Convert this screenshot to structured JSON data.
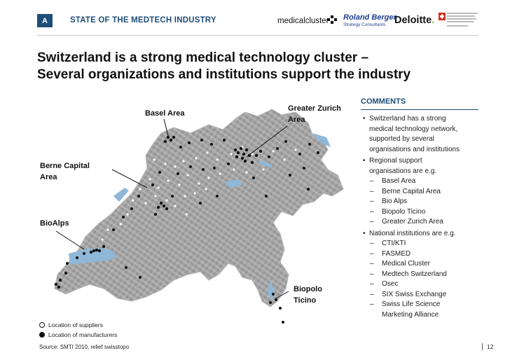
{
  "header": {
    "section_letter": "A",
    "section_title": "STATE OF THE MEDTECH INDUSTRY",
    "logos": {
      "medical_cluster": "medicalcluster",
      "roland_berger": "Roland Berger",
      "roland_berger_sub": "Strategy Consultants",
      "deloitte": "Deloitte",
      "deloitte_dot": "."
    }
  },
  "title_line1": "Switzerland is a strong medical technology cluster –",
  "title_line2": "Several organizations and institutions support the industry",
  "map_labels": {
    "basel": "Basel Area",
    "greater_zurich_1": "Greater Zurich",
    "greater_zurich_2": "Area",
    "berne_1": "Berne Capital",
    "berne_2": "Area",
    "bioalps": "BioAlps",
    "biopolo_1": "Biopolo",
    "biopolo_2": "Ticino"
  },
  "legend": {
    "suppliers": "Location of suppliers",
    "manufacturers": "Location of manufacturers"
  },
  "source": "Source:  SMTI 2010, relief swisstopo",
  "page_number": "12",
  "comments": {
    "heading": "COMMENTS",
    "bullet1": [
      "Switzerland has a strong",
      "medical technology network,",
      "supported by several",
      "organisations and institutions"
    ],
    "bullet2": [
      "Regional support",
      "organisations are e.g."
    ],
    "regional": [
      "Basel Area",
      "Berne Capital Area",
      "Bio Alps",
      "Biopolo Ticino",
      "Greater Zurich Area"
    ],
    "bullet3": "National institutions are e.g.",
    "national": [
      "CTI/KTI",
      "FASMED",
      "Medical Cluster",
      "Medtech Switzerland",
      "Osec",
      "SIX Swiss Exchange",
      "Swiss Life Science",
      "Marketing Alliance"
    ]
  },
  "colors": {
    "accent": "#1f4e79",
    "terrain": "#9c9c9c",
    "lake": "#8fb8d8",
    "deloitte_green": "#86bc25"
  }
}
